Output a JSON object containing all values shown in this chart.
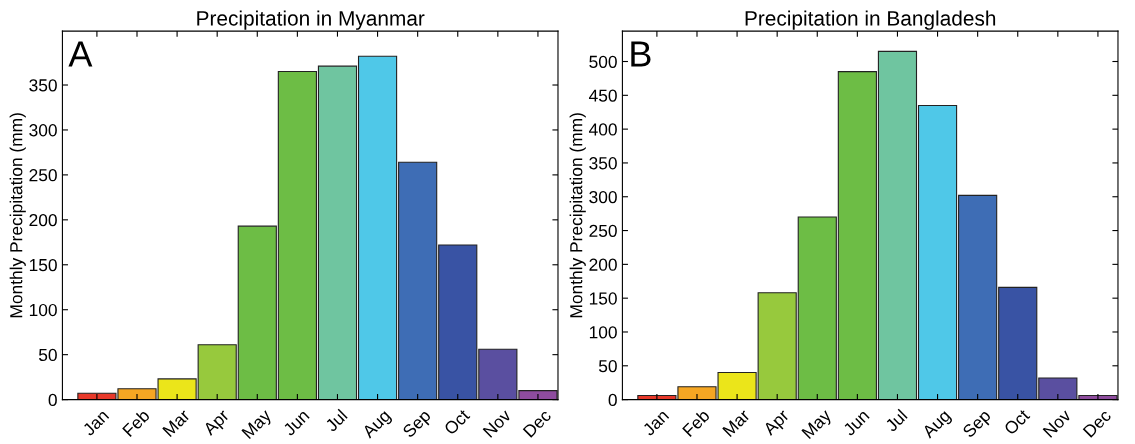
{
  "chart_data": [
    {
      "type": "bar",
      "title": "Precipitation in Myanmar",
      "ylabel": "Monthly Precipitation (mm)",
      "annotations": [
        "A"
      ],
      "categories": [
        "Jan",
        "Feb",
        "Mar",
        "Apr",
        "May",
        "Jun",
        "Jul",
        "Aug",
        "Sep",
        "Oct",
        "Nov",
        "Dec"
      ],
      "values": [
        7,
        12,
        23,
        61,
        193,
        365,
        371,
        382,
        264,
        172,
        56,
        10
      ],
      "colors": [
        "#e8392a",
        "#f5a623",
        "#ebe51a",
        "#97c93d",
        "#6dbd45",
        "#6dbd45",
        "#6fc5a0",
        "#4fc8e8",
        "#3e6db5",
        "#3953a4",
        "#5a4fa0",
        "#8e4c9e"
      ],
      "ylim": [
        0,
        410
      ],
      "yticks": [
        0,
        50,
        100,
        150,
        200,
        250,
        300,
        350
      ],
      "grid": false
    },
    {
      "type": "bar",
      "title": "Precipitation in Bangladesh",
      "ylabel": "Monthly Precipitation (mm)",
      "annotations": [
        "B"
      ],
      "categories": [
        "Jan",
        "Feb",
        "Mar",
        "Apr",
        "May",
        "Jun",
        "Jul",
        "Aug",
        "Sep",
        "Oct",
        "Nov",
        "Dec"
      ],
      "values": [
        6,
        19,
        40,
        158,
        270,
        485,
        515,
        435,
        302,
        166,
        32,
        6
      ],
      "colors": [
        "#e8392a",
        "#f5a623",
        "#ebe51a",
        "#97c93d",
        "#6dbd45",
        "#6dbd45",
        "#6fc5a0",
        "#4fc8e8",
        "#3e6db5",
        "#3953a4",
        "#5a4fa0",
        "#8e4c9e"
      ],
      "ylim": [
        0,
        545
      ],
      "yticks": [
        0,
        50,
        100,
        150,
        200,
        250,
        300,
        350,
        400,
        450,
        500
      ],
      "grid": false
    }
  ]
}
